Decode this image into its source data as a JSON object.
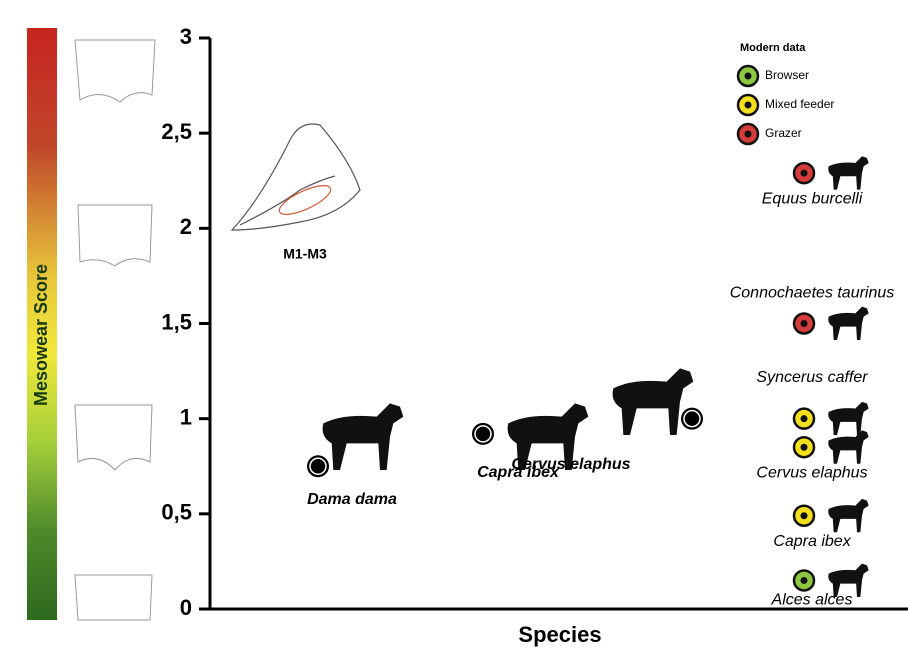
{
  "chart_data": {
    "type": "scatter",
    "y_label": "Mesowear Score",
    "x_label": "Species",
    "annotation": "M1-M3",
    "ylim": [
      0,
      3
    ],
    "yticks": [
      0,
      {
        "value": 0.5,
        "label": "0,5"
      },
      1,
      {
        "value": 1.5,
        "label": "1,5"
      },
      2,
      {
        "value": 2.5,
        "label": "2,5"
      },
      3
    ],
    "fossil": {
      "color": "#000000",
      "categories": [
        "Dama dama",
        "Capra ibex",
        "Cervus elaphus"
      ],
      "values": [
        0.75,
        0.92,
        1.0
      ]
    },
    "legend_title": "Modern data",
    "series": [
      {
        "name": "Browser",
        "color": "#8dc63f",
        "categories": [
          "Alces alces"
        ],
        "values": [
          0.15
        ]
      },
      {
        "name": "Mixed feeder",
        "color": "#f2e01c",
        "categories": [
          "Syncerus caffer",
          "Cervus elaphus",
          "Capra ibex"
        ],
        "values": [
          1.0,
          0.85,
          0.49
        ]
      },
      {
        "name": "Grazer",
        "color": "#d63c3c",
        "categories": [
          "Equus burcelli",
          "Connochaetes taurinus"
        ],
        "values": [
          2.29,
          1.5
        ]
      }
    ]
  }
}
